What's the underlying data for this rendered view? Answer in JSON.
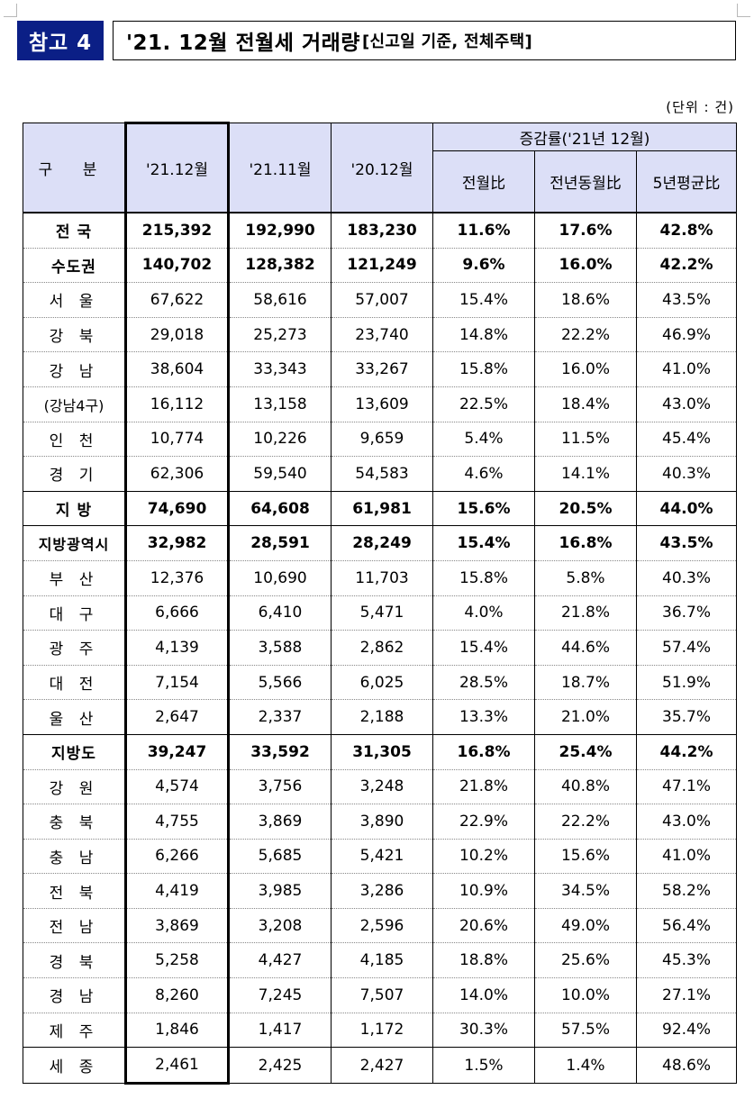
{
  "ref_label": "참고 4",
  "title_main": "'21. 12월 전월세 거래량",
  "title_sub": "[신고일 기준, 전체주택]",
  "unit": "(단위 : 건)",
  "header": {
    "region": "구 분",
    "col1": "'21.12월",
    "col2": "'21.11월",
    "col3": "'20.12월",
    "change_group": "증감률('21년 12월)",
    "mom": "전월比",
    "yoy": "전년동월比",
    "avg5y": "5년평균比"
  },
  "rows": [
    {
      "region": "전 국",
      "v1": "215,392",
      "v2": "192,990",
      "v3": "183,230",
      "mom": "11.6%",
      "yoy": "17.6%",
      "avg5y": "42.8%",
      "bold": true
    },
    {
      "region": "수도권",
      "v1": "140,702",
      "v2": "128,382",
      "v3": "121,249",
      "mom": "9.6%",
      "yoy": "16.0%",
      "avg5y": "42.2%",
      "bold": true
    },
    {
      "region": "서 울",
      "v1": "67,622",
      "v2": "58,616",
      "v3": "57,007",
      "mom": "15.4%",
      "yoy": "18.6%",
      "avg5y": "43.5%"
    },
    {
      "region": "강 북",
      "v1": "29,018",
      "v2": "25,273",
      "v3": "23,740",
      "mom": "14.8%",
      "yoy": "22.2%",
      "avg5y": "46.9%"
    },
    {
      "region": "강 남",
      "v1": "38,604",
      "v2": "33,343",
      "v3": "33,267",
      "mom": "15.8%",
      "yoy": "16.0%",
      "avg5y": "41.0%"
    },
    {
      "region": "(강남4구)",
      "v1": "16,112",
      "v2": "13,158",
      "v3": "13,609",
      "mom": "22.5%",
      "yoy": "18.4%",
      "avg5y": "43.0%",
      "tight": true
    },
    {
      "region": "인 천",
      "v1": "10,774",
      "v2": "10,226",
      "v3": "9,659",
      "mom": "5.4%",
      "yoy": "11.5%",
      "avg5y": "45.4%"
    },
    {
      "region": "경 기",
      "v1": "62,306",
      "v2": "59,540",
      "v3": "54,583",
      "mom": "4.6%",
      "yoy": "14.1%",
      "avg5y": "40.3%",
      "sep": true
    },
    {
      "region": "지 방",
      "v1": "74,690",
      "v2": "64,608",
      "v3": "61,981",
      "mom": "15.6%",
      "yoy": "20.5%",
      "avg5y": "44.0%",
      "bold": true,
      "sep": true
    },
    {
      "region": "지방광역시",
      "v1": "32,982",
      "v2": "28,591",
      "v3": "28,249",
      "mom": "15.4%",
      "yoy": "16.8%",
      "avg5y": "43.5%",
      "bold": true,
      "tight": true
    },
    {
      "region": "부 산",
      "v1": "12,376",
      "v2": "10,690",
      "v3": "11,703",
      "mom": "15.8%",
      "yoy": "5.8%",
      "avg5y": "40.3%"
    },
    {
      "region": "대 구",
      "v1": "6,666",
      "v2": "6,410",
      "v3": "5,471",
      "mom": "4.0%",
      "yoy": "21.8%",
      "avg5y": "36.7%"
    },
    {
      "region": "광 주",
      "v1": "4,139",
      "v2": "3,588",
      "v3": "2,862",
      "mom": "15.4%",
      "yoy": "44.6%",
      "avg5y": "57.4%"
    },
    {
      "region": "대 전",
      "v1": "7,154",
      "v2": "5,566",
      "v3": "6,025",
      "mom": "28.5%",
      "yoy": "18.7%",
      "avg5y": "51.9%"
    },
    {
      "region": "울 산",
      "v1": "2,647",
      "v2": "2,337",
      "v3": "2,188",
      "mom": "13.3%",
      "yoy": "21.0%",
      "avg5y": "35.7%",
      "sep": true
    },
    {
      "region": "지방도",
      "v1": "39,247",
      "v2": "33,592",
      "v3": "31,305",
      "mom": "16.8%",
      "yoy": "25.4%",
      "avg5y": "44.2%",
      "bold": true
    },
    {
      "region": "강 원",
      "v1": "4,574",
      "v2": "3,756",
      "v3": "3,248",
      "mom": "21.8%",
      "yoy": "40.8%",
      "avg5y": "47.1%"
    },
    {
      "region": "충 북",
      "v1": "4,755",
      "v2": "3,869",
      "v3": "3,890",
      "mom": "22.9%",
      "yoy": "22.2%",
      "avg5y": "43.0%"
    },
    {
      "region": "충 남",
      "v1": "6,266",
      "v2": "5,685",
      "v3": "5,421",
      "mom": "10.2%",
      "yoy": "15.6%",
      "avg5y": "41.0%"
    },
    {
      "region": "전 북",
      "v1": "4,419",
      "v2": "3,985",
      "v3": "3,286",
      "mom": "10.9%",
      "yoy": "34.5%",
      "avg5y": "58.2%"
    },
    {
      "region": "전 남",
      "v1": "3,869",
      "v2": "3,208",
      "v3": "2,596",
      "mom": "20.6%",
      "yoy": "49.0%",
      "avg5y": "56.4%"
    },
    {
      "region": "경 북",
      "v1": "5,258",
      "v2": "4,427",
      "v3": "4,185",
      "mom": "18.8%",
      "yoy": "25.6%",
      "avg5y": "45.3%"
    },
    {
      "region": "경 남",
      "v1": "8,260",
      "v2": "7,245",
      "v3": "7,507",
      "mom": "14.0%",
      "yoy": "10.0%",
      "avg5y": "27.1%"
    },
    {
      "region": "제 주",
      "v1": "1,846",
      "v2": "1,417",
      "v3": "1,172",
      "mom": "30.3%",
      "yoy": "57.5%",
      "avg5y": "92.4%",
      "sep": true
    },
    {
      "region": "세 종",
      "v1": "2,461",
      "v2": "2,425",
      "v3": "2,427",
      "mom": "1.5%",
      "yoy": "1.4%",
      "avg5y": "48.6%"
    }
  ]
}
